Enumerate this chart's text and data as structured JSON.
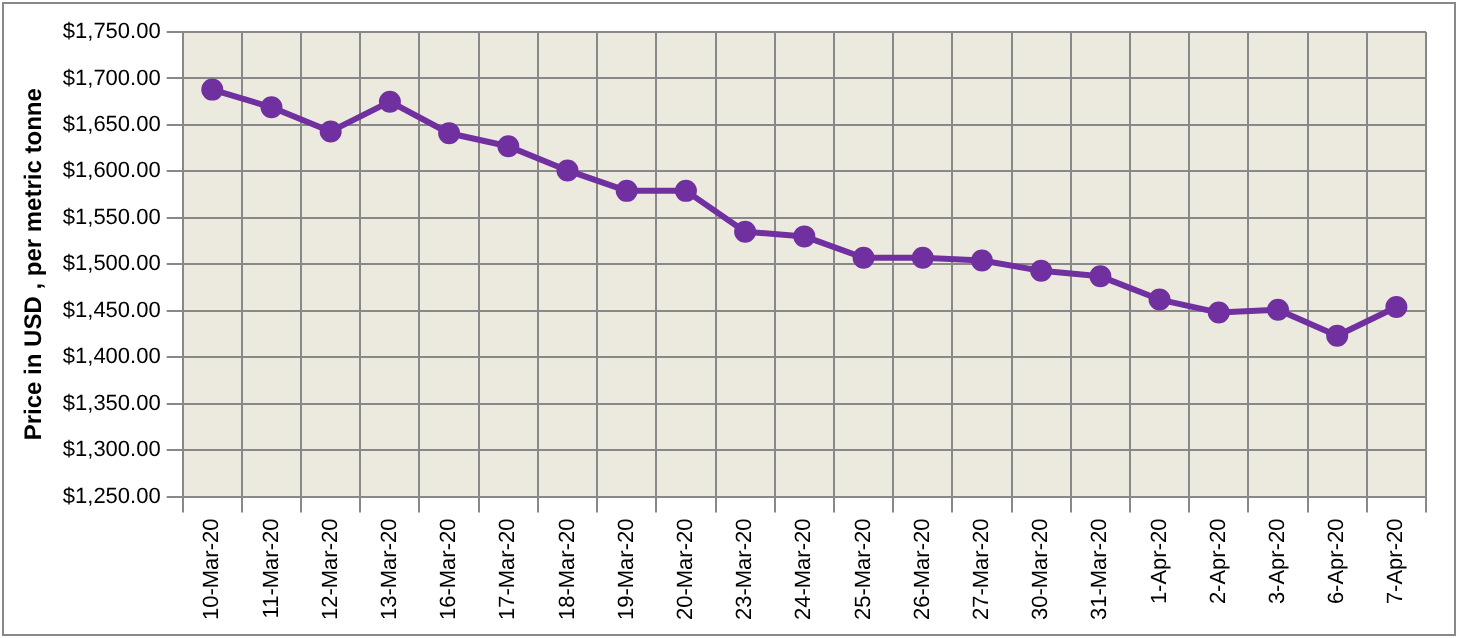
{
  "chart_data": {
    "type": "line",
    "ylabel": "Price in USD , per metric tonne",
    "categories": [
      "10-Mar-20",
      "11-Mar-20",
      "12-Mar-20",
      "13-Mar-20",
      "16-Mar-20",
      "17-Mar-20",
      "18-Mar-20",
      "19-Mar-20",
      "20-Mar-20",
      "23-Mar-20",
      "24-Mar-20",
      "25-Mar-20",
      "26-Mar-20",
      "27-Mar-20",
      "30-Mar-20",
      "31-Mar-20",
      "1-Apr-20",
      "2-Apr-20",
      "3-Apr-20",
      "6-Apr-20",
      "7-Apr-20"
    ],
    "series": [
      {
        "color": "#7030a0",
        "values": [
          1688,
          1669,
          1643,
          1675,
          1641,
          1627,
          1601,
          1579,
          1579,
          1535,
          1530,
          1507,
          1507,
          1504,
          1493,
          1487,
          1462,
          1448,
          1451,
          1423,
          1454
        ]
      }
    ],
    "ylim": [
      1250,
      1750
    ],
    "yticks": [
      {
        "value": 1250,
        "label": "$1,250.00"
      },
      {
        "value": 1300,
        "label": "$1,300.00"
      },
      {
        "value": 1350,
        "label": "$1,350.00"
      },
      {
        "value": 1400,
        "label": "$1,400.00"
      },
      {
        "value": 1450,
        "label": "$1,450.00"
      },
      {
        "value": 1500,
        "label": "$1,500.00"
      },
      {
        "value": 1550,
        "label": "$1,550.00"
      },
      {
        "value": 1600,
        "label": "$1,600.00"
      },
      {
        "value": 1650,
        "label": "$1,650.00"
      },
      {
        "value": 1700,
        "label": "$1,700.00"
      },
      {
        "value": 1750,
        "label": "$1,750.00"
      }
    ],
    "grid": true,
    "legend": false,
    "marker": "circle",
    "line_style": "solid"
  }
}
